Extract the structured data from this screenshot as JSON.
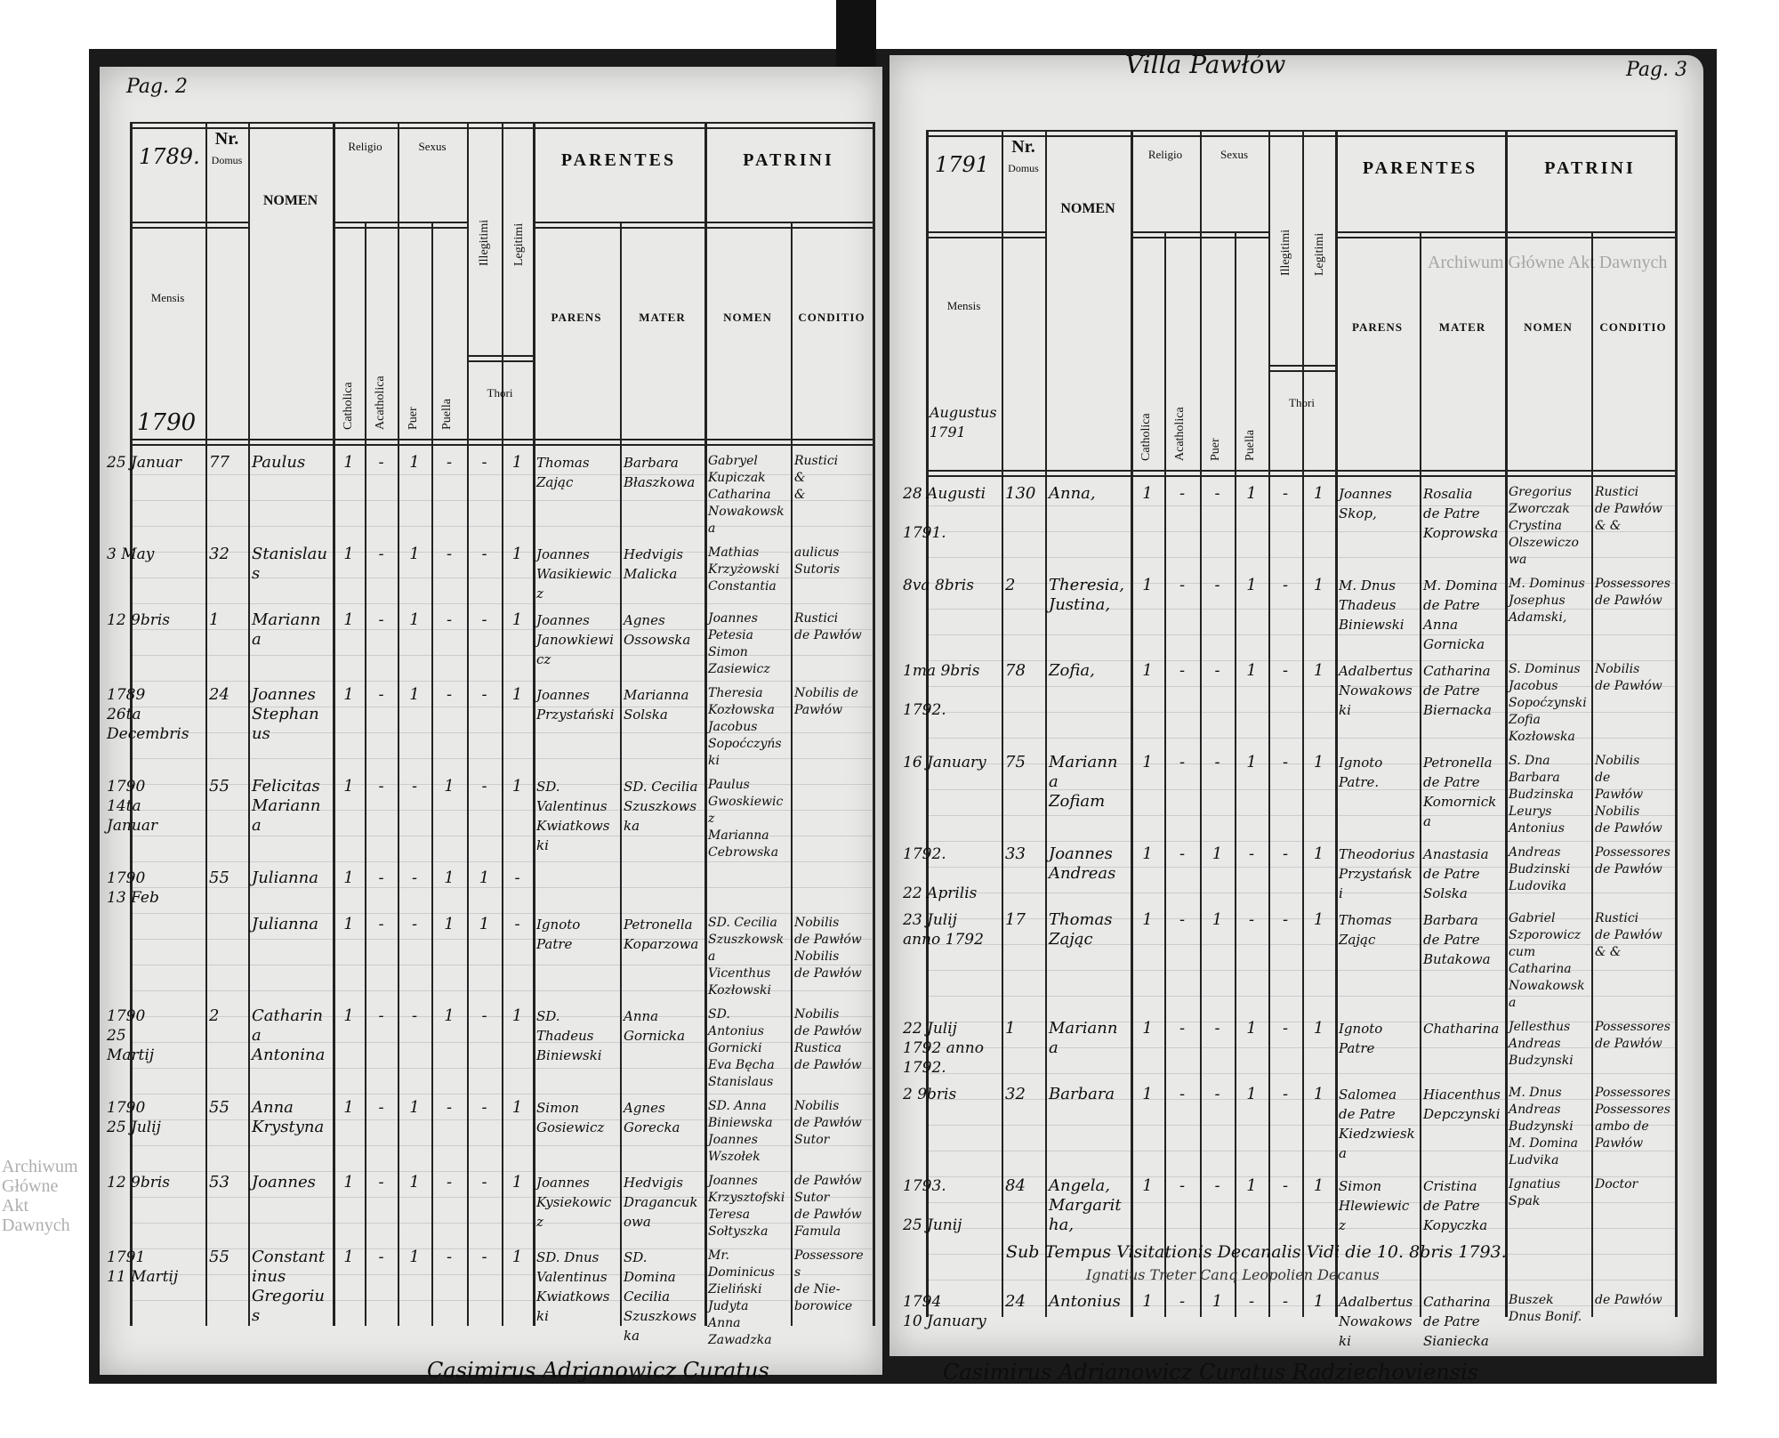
{
  "watermark": "Archiwum Główne Akt Dawnych",
  "headers": {
    "nr": "Nr.",
    "domus": "Domus",
    "nomen": "NOMEN",
    "mensis": "Mensis",
    "religio": "Religio",
    "sexus": "Sexus",
    "catholica": "Catholica",
    "acatholica": "Acatholica",
    "puer": "Puer",
    "puella": "Puella",
    "illegitimi": "Illegitimi",
    "legitimi": "Legitimi",
    "thori": "Thori",
    "parentes": "PARENTES",
    "parens": "PARENS",
    "mater": "MATER",
    "patrini": "PATRINI",
    "patrini_nomen": "NOMEN",
    "conditio": "CONDITIO"
  },
  "left_page": {
    "page_label": "Pag. 2",
    "year_header": "1789.",
    "year_sub": "1790",
    "rows": [
      {
        "date": "25 Januar",
        "nr": "77",
        "nomen": "Paulus",
        "marks": [
          "1",
          "-",
          "1",
          "-",
          "-",
          "1"
        ],
        "parens": "Thomas\nZając",
        "mater": "Barbara\nBłaszkowa",
        "patrini": "Gabryel\nKupiczak\nCatharina\nNowakowska",
        "conditio": "Rustici\n&\n&"
      },
      {
        "date": "3 May",
        "nr": "32",
        "nomen": "Stanislaus",
        "marks": [
          "1",
          "-",
          "1",
          "-",
          "-",
          "1"
        ],
        "parens": "Joannes\nWasikiewicz",
        "mater": "Hedvigis\nMalicka",
        "patrini": "Mathias\nKrzyżowski\nConstantia",
        "conditio": "aulicus\nSutoris"
      },
      {
        "date": "12 9bris",
        "nr": "1",
        "nomen": "Marianna",
        "marks": [
          "1",
          "-",
          "1",
          "-",
          "-",
          "1"
        ],
        "parens": "Joannes\nJanowkiewicz",
        "mater": "Agnes\nOssowska",
        "patrini": "Joannes\nPetesia\nSimon\nZasiewicz",
        "conditio": "Rustici\nde Pawłów"
      },
      {
        "date": "1789\n26ta\nDecembris",
        "nr": "24",
        "nomen": "Joannes\nStephanus",
        "marks": [
          "1",
          "-",
          "1",
          "-",
          "-",
          "1"
        ],
        "parens": "Joannes\nPrzystański",
        "mater": "Marianna\nSolska",
        "patrini": "Theresia\nKozłowska\nJacobus\nSopoćczyński",
        "conditio": "Nobilis de\nPawłów"
      },
      {
        "date": "1790\n14ta\nJanuar",
        "nr": "55",
        "nomen": "Felicitas\nMarianna",
        "marks": [
          "1",
          "-",
          "-",
          "1",
          "-",
          "1"
        ],
        "parens": "SD. Valentinus\nKwiatkowski",
        "mater": "SD. Cecilia\nSzuszkowska",
        "patrini": "Paulus\nGwoskiewicz\nMarianna\nCebrowska",
        "conditio": ""
      },
      {
        "date": "1790\n13 Feb",
        "nr": "55",
        "nomen": "Julianna",
        "marks": [
          "1",
          "-",
          "-",
          "1",
          "1",
          "-"
        ],
        "parens": "",
        "mater": "",
        "patrini": "",
        "conditio": ""
      },
      {
        "date": "",
        "nr": "",
        "nomen": "Julianna",
        "marks": [
          "1",
          "-",
          "-",
          "1",
          "1",
          "-"
        ],
        "parens": "Ignoto\nPatre",
        "mater": "Petronella\nKoparzowa",
        "patrini": "SD. Cecilia\nSzuszkowska\nVicenthus\nKozłowski",
        "conditio": "Nobilis\nde Pawłów\nNobilis\nde Pawłów"
      },
      {
        "date": "1790\n25\nMartij",
        "nr": "2",
        "nomen": "Catharina\nAntonina",
        "marks": [
          "1",
          "-",
          "-",
          "1",
          "-",
          "1"
        ],
        "parens": "SD. Thadeus\nBiniewski",
        "mater": "Anna\nGornicka",
        "patrini": "SD. Antonius\nGornicki\nEva Bęcha\nStanislaus",
        "conditio": "Nobilis\nde Pawłów\nRustica\nde Pawłów"
      },
      {
        "date": "1790\n25 Julij",
        "nr": "55",
        "nomen": "Anna\nKrystyna",
        "marks": [
          "1",
          "-",
          "1",
          "-",
          "-",
          "1"
        ],
        "parens": "Simon\nGosiewicz",
        "mater": "Agnes\nGorecka",
        "patrini": "SD. Anna\nBiniewska\nJoannes\nWszołek",
        "conditio": "Nobilis\nde Pawłów\nSutor"
      },
      {
        "date": "12 9bris",
        "nr": "53",
        "nomen": "Joannes",
        "marks": [
          "1",
          "-",
          "1",
          "-",
          "-",
          "1"
        ],
        "parens": "Joannes\nKysiekowicz",
        "mater": "Hedvigis\nDragancukowa",
        "patrini": "Joannes\nKrzysztofski\nTeresa\nSołtyszka",
        "conditio": "de Pawłów\nSutor\nde Pawłów\nFamula"
      },
      {
        "date": "1791\n11 Martij",
        "nr": "55",
        "nomen": "Constantinus\nGregorius",
        "marks": [
          "1",
          "-",
          "1",
          "-",
          "-",
          "1"
        ],
        "parens": "SD. Dnus\nValentinus\nKwiatkowski",
        "mater": "SD. Domina\nCecilia\nSzuszkowska",
        "patrini": "Mr. Dominicus\nZieliński\nJudyta\nAnna Zawadzka",
        "conditio": "Possessores\nde Nie-\nborowice"
      }
    ],
    "signature": "Casimirus Adrjanowicz Curatus"
  },
  "right_page": {
    "page_title": "Villa Pawłów",
    "page_label": "Pag. 3",
    "year_header": "1791",
    "mensis_sub": "Augustus\n1791",
    "rows": [
      {
        "date": "28 Augusti\n\n1791.",
        "nr": "130",
        "nomen": "Anna,",
        "marks": [
          "1",
          "-",
          "-",
          "1",
          "-",
          "1"
        ],
        "parens": "Joannes\nSkop,",
        "mater": "Rosalia\nde Patre\nKoprowska",
        "patrini": "Gregorius\nZworczak\nCrystina\nOlszewiczowa",
        "conditio": "Rustici\nde Pawłów\n& &"
      },
      {
        "date": "8va 8bris",
        "nr": "2",
        "nomen": "Theresia,\nJustina,",
        "marks": [
          "1",
          "-",
          "-",
          "1",
          "-",
          "1"
        ],
        "parens": "M. Dnus\nThadeus\nBiniewski",
        "mater": "M. Domina\nde Patre\nAnna\nGornicka",
        "patrini": "M. Dominus\nJosephus\nAdamski,",
        "conditio": "Possessores\nde Pawłów"
      },
      {
        "date": "1ma 9bris\n\n1792.",
        "nr": "78",
        "nomen": "Zofia,",
        "marks": [
          "1",
          "-",
          "-",
          "1",
          "-",
          "1"
        ],
        "parens": "Adalbertus\nNowakowski",
        "mater": "Catharina\nde Patre\nBiernacka",
        "patrini": "S. Dominus\nJacobus\nSopoćzynski\nZofia Kozłowska",
        "conditio": "Nobilis\nde Pawłów"
      },
      {
        "date": "16 January",
        "nr": "75",
        "nomen": "Marianna\nZofiam",
        "marks": [
          "1",
          "-",
          "-",
          "1",
          "-",
          "1"
        ],
        "parens": "Ignoto\nPatre.",
        "mater": "Petronella\nde Patre\nKomornicka",
        "patrini": "S. Dna\nBarbara\nBudzinska\nLeurys\nAntonius",
        "conditio": "Nobilis\nde\nPawłów\nNobilis\nde Pawłów"
      },
      {
        "date": "1792.\n\n22 Aprilis",
        "nr": "33",
        "nomen": "Joannes\nAndreas",
        "marks": [
          "1",
          "-",
          "1",
          "-",
          "-",
          "1"
        ],
        "parens": "Theodorius\nPrzystański",
        "mater": "Anastasia\nde Patre\nSolska",
        "patrini": "Andreas\nBudzinski\nLudovika",
        "conditio": "Possessores\nde Pawłów"
      },
      {
        "date": "23 Julij\nanno 1792",
        "nr": "17",
        "nomen": "Thomas\nZając",
        "marks": [
          "1",
          "-",
          "1",
          "-",
          "-",
          "1"
        ],
        "parens": "Thomas\nZając",
        "mater": "Barbara\nde Patre\nButakowa",
        "patrini": "Gabriel\nSzporowicz\ncum Catharina\nNowakowska",
        "conditio": "Rustici\nde Pawłów\n& &"
      },
      {
        "date": "22 Julij\n1792 anno\n1792.",
        "nr": "1",
        "nomen": "Marianna",
        "marks": [
          "1",
          "-",
          "-",
          "1",
          "-",
          "1"
        ],
        "parens": "Ignoto\nPatre",
        "mater": "Chatharina",
        "patrini": "Jellesthus\nAndreas\nBudzynski",
        "conditio": "Possessores\nde Pawłów"
      },
      {
        "date": "2 9bris",
        "nr": "32",
        "nomen": "Barbara",
        "marks": [
          "1",
          "-",
          "-",
          "1",
          "-",
          "1"
        ],
        "parens": "Salomea\nde Patre\nKiedzwieska",
        "mater": "Hiacenthus\nDepczynski",
        "patrini": "M. Dnus\nAndreas\nBudzynski\nM. Domina\nLudvika",
        "conditio": "Possessores\nPossessores\nambo de\nPawłów"
      },
      {
        "date": "1793.\n\n25 Junij",
        "nr": "84",
        "nomen": "Angela,\nMargaritha,",
        "marks": [
          "1",
          "-",
          "-",
          "1",
          "-",
          "1"
        ],
        "parens": "Simon\nHlewiewicz",
        "mater": "Cristina\nde Patre\nKopyczka",
        "patrini": "Ignatius\nSpak",
        "conditio": "Doctor"
      },
      {
        "date": "1794\n10 January",
        "nr": "24",
        "nomen": "Antonius",
        "marks": [
          "1",
          "-",
          "1",
          "-",
          "-",
          "1"
        ],
        "parens": "Adalbertus\nNowakowski",
        "mater": "Catharina\nde Patre\nSianiecka",
        "patrini": "Buszek\nDnus Bonif.",
        "conditio": "de Pawłów"
      }
    ],
    "visitation_note": "Sub Tempus Visitationis Decanalis Vidi die 10. 8bris 1793.",
    "visitation_signature": "Ignatius Treter Canq Leopolien Decanus",
    "signature": "Casimirus Adrianowicz Curatus Radziechoviensis"
  }
}
